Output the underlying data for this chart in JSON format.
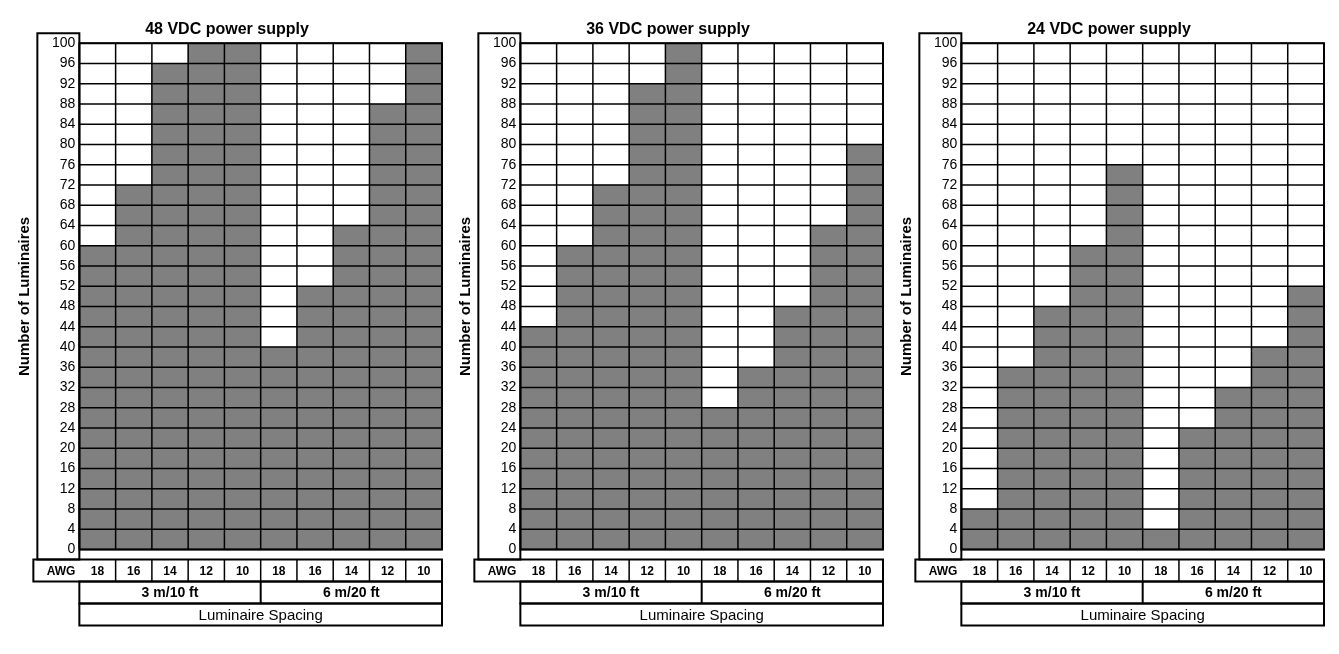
{
  "chart_data": [
    {
      "type": "bar",
      "title": "48 VDC power supply",
      "ylabel": "Number of Luminaires",
      "xlabel": "Luminaire Spacing",
      "categories": [
        "18",
        "16",
        "14",
        "12",
        "10",
        "18",
        "16",
        "14",
        "12",
        "10"
      ],
      "annotations": [
        "AWG",
        "3 m/10 ft",
        "6 m/20 ft"
      ],
      "series": [
        {
          "color": "#808080",
          "values": [
            60,
            72,
            96,
            100,
            100,
            40,
            52,
            64,
            88,
            100
          ]
        }
      ],
      "ylim": [
        0,
        100
      ],
      "yticks": [
        0,
        4,
        8,
        12,
        16,
        20,
        24,
        28,
        32,
        36,
        40,
        44,
        48,
        52,
        56,
        60,
        64,
        68,
        72,
        76,
        80,
        84,
        88,
        92,
        96,
        100
      ],
      "grid": true
    },
    {
      "type": "bar",
      "title": "36 VDC power supply",
      "ylabel": "Number of Luminaires",
      "xlabel": "Luminaire Spacing",
      "categories": [
        "18",
        "16",
        "14",
        "12",
        "10",
        "18",
        "16",
        "14",
        "12",
        "10"
      ],
      "annotations": [
        "AWG",
        "3 m/10 ft",
        "6 m/20 ft"
      ],
      "series": [
        {
          "color": "#808080",
          "values": [
            44,
            60,
            72,
            92,
            100,
            28,
            36,
            48,
            64,
            80
          ]
        }
      ],
      "ylim": [
        0,
        100
      ],
      "yticks": [
        0,
        4,
        8,
        12,
        16,
        20,
        24,
        28,
        32,
        36,
        40,
        44,
        48,
        52,
        56,
        60,
        64,
        68,
        72,
        76,
        80,
        84,
        88,
        92,
        96,
        100
      ],
      "grid": true
    },
    {
      "type": "bar",
      "title": "24 VDC power supply",
      "ylabel": "Number of Luminaires",
      "xlabel": "Luminaire Spacing",
      "categories": [
        "18",
        "16",
        "14",
        "12",
        "10",
        "18",
        "16",
        "14",
        "12",
        "10"
      ],
      "annotations": [
        "AWG",
        "3 m/10 ft",
        "6 m/20 ft"
      ],
      "series": [
        {
          "color": "#808080",
          "values": [
            8,
            36,
            48,
            60,
            76,
            4,
            24,
            32,
            40,
            52
          ]
        }
      ],
      "ylim": [
        0,
        100
      ],
      "yticks": [
        0,
        4,
        8,
        12,
        16,
        20,
        24,
        28,
        32,
        36,
        40,
        44,
        48,
        52,
        56,
        60,
        64,
        68,
        72,
        76,
        80,
        84,
        88,
        92,
        96,
        100
      ],
      "grid": true
    }
  ]
}
